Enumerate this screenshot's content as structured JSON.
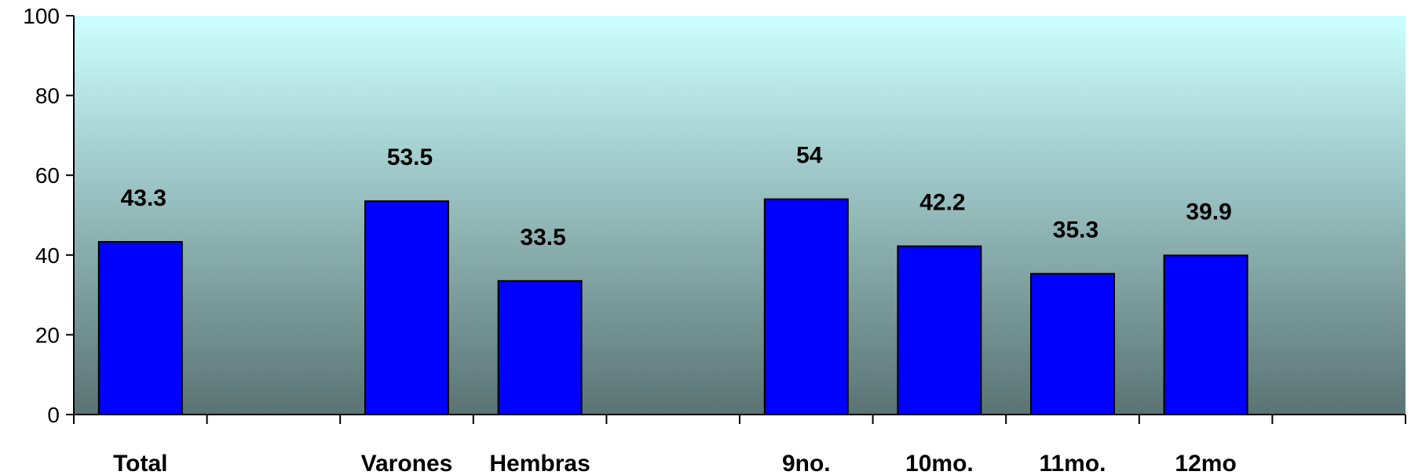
{
  "chart_data": {
    "type": "bar",
    "title": "",
    "xlabel": "",
    "ylabel": "",
    "ylim": [
      0,
      100
    ],
    "yticks": [
      0,
      20,
      40,
      60,
      80,
      100
    ],
    "grid": false,
    "categories": [
      "Total",
      "",
      "Varones",
      "Hembras",
      "",
      "9no.",
      "10mo.",
      "11mo.",
      "12mo",
      ""
    ],
    "series": [
      {
        "values": [
          43.3,
          null,
          53.5,
          33.5,
          null,
          54,
          42.2,
          35.3,
          39.9,
          null
        ]
      }
    ],
    "data_labels": [
      "43.3",
      "",
      "53.5",
      "33.5",
      "",
      "54",
      "42.2",
      "35.3",
      "39.9",
      ""
    ],
    "colors": {
      "bar_fill": "#0000ff",
      "bar_stroke": "#000000",
      "plot_bg_top": "#ccffff",
      "plot_bg_bottom": "#5a7373"
    }
  }
}
